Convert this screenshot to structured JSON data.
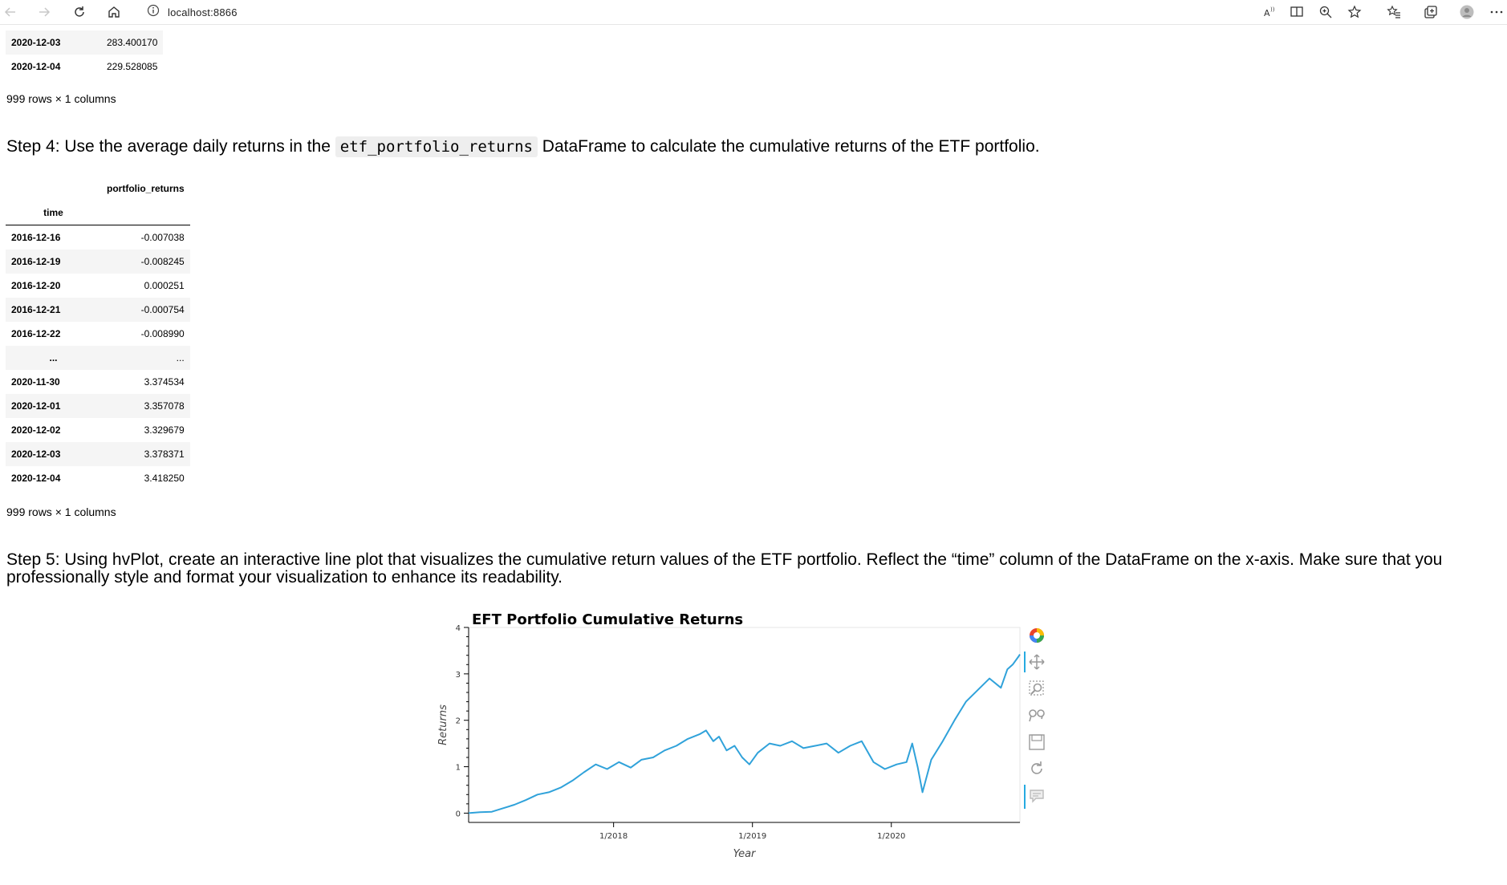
{
  "browser": {
    "url": "localhost:8866",
    "icons": [
      "back-icon",
      "forward-icon",
      "reload-icon",
      "home-icon",
      "info-icon",
      "read-aloud-icon",
      "immersive-reader-icon",
      "zoom-icon",
      "favorite-icon",
      "favorites-icon",
      "collections-icon",
      "profile-icon",
      "more-icon"
    ]
  },
  "top_table": {
    "rows": [
      {
        "index": "2020-12-03",
        "value": "283.400170"
      },
      {
        "index": "2020-12-04",
        "value": "229.528085"
      }
    ],
    "shape": "999 rows × 1 columns"
  },
  "step4": {
    "before": "Step 4: Use the average daily returns in the ",
    "code": "etf_portfolio_returns",
    "after": " DataFrame to calculate the cumulative returns of the ETF portfolio."
  },
  "returns_table": {
    "column": "portfolio_returns",
    "index_name": "time",
    "rows": [
      {
        "index": "2016-12-16",
        "value": "-0.007038"
      },
      {
        "index": "2016-12-19",
        "value": "-0.008245"
      },
      {
        "index": "2016-12-20",
        "value": "0.000251"
      },
      {
        "index": "2016-12-21",
        "value": "-0.000754"
      },
      {
        "index": "2016-12-22",
        "value": "-0.008990"
      },
      {
        "index": "...",
        "value": "..."
      },
      {
        "index": "2020-11-30",
        "value": "3.374534"
      },
      {
        "index": "2020-12-01",
        "value": "3.357078"
      },
      {
        "index": "2020-12-02",
        "value": "3.329679"
      },
      {
        "index": "2020-12-03",
        "value": "3.378371"
      },
      {
        "index": "2020-12-04",
        "value": "3.418250"
      }
    ],
    "shape": "999 rows × 1 columns"
  },
  "step5": {
    "text": "Step 5: Using hvPlot, create an interactive line plot that visualizes the cumulative return values of the ETF portfolio. Reflect the “time” column of the DataFrame on the x-axis. Make sure that you professionally style and format your visualization to enhance its readability."
  },
  "plot_tools": [
    "bokeh-logo-icon",
    "pan-icon",
    "box-zoom-icon",
    "wheel-zoom-icon",
    "save-icon",
    "reset-icon",
    "hover-icon"
  ],
  "chart_data": {
    "type": "line",
    "title": "EFT Portfolio Cumulative Returns",
    "xlabel": "Year",
    "ylabel": "Returns",
    "xlim": [
      "2016-12-16",
      "2020-12-04"
    ],
    "ylim": [
      -0.2,
      4
    ],
    "yticks": [
      0,
      1,
      2,
      3,
      4
    ],
    "xticks": [
      {
        "date": "2018-01-01",
        "label": "1/2018"
      },
      {
        "date": "2019-01-01",
        "label": "1/2019"
      },
      {
        "date": "2020-01-01",
        "label": "1/2020"
      }
    ],
    "color": "#30a2da",
    "grid": false,
    "series": [
      {
        "x": [
          "2016-12-16",
          "2017-01-15",
          "2017-02-15",
          "2017-03-15",
          "2017-04-15",
          "2017-05-15",
          "2017-06-15",
          "2017-07-15",
          "2017-08-15",
          "2017-09-15",
          "2017-10-15",
          "2017-11-15",
          "2017-12-15",
          "2018-01-15",
          "2018-02-15",
          "2018-03-15",
          "2018-04-15",
          "2018-05-15",
          "2018-06-15",
          "2018-07-15",
          "2018-08-15",
          "2018-09-01",
          "2018-09-20",
          "2018-10-05",
          "2018-10-25",
          "2018-11-15",
          "2018-12-05",
          "2018-12-24",
          "2019-01-15",
          "2019-02-15",
          "2019-03-15",
          "2019-04-15",
          "2019-05-15",
          "2019-06-15",
          "2019-07-15",
          "2019-08-15",
          "2019-09-15",
          "2019-10-15",
          "2019-11-15",
          "2019-12-15",
          "2020-01-15",
          "2020-02-10",
          "2020-02-25",
          "2020-03-10",
          "2020-03-23",
          "2020-04-15",
          "2020-05-15",
          "2020-06-15",
          "2020-07-15",
          "2020-08-15",
          "2020-09-15",
          "2020-10-15",
          "2020-11-01",
          "2020-11-15",
          "2020-11-30",
          "2020-12-04"
        ],
        "y": [
          0.0,
          0.02,
          0.03,
          0.1,
          0.18,
          0.28,
          0.4,
          0.45,
          0.55,
          0.7,
          0.88,
          1.05,
          0.95,
          1.1,
          0.98,
          1.15,
          1.2,
          1.35,
          1.45,
          1.6,
          1.7,
          1.78,
          1.55,
          1.65,
          1.35,
          1.45,
          1.2,
          1.05,
          1.3,
          1.5,
          1.45,
          1.55,
          1.4,
          1.45,
          1.5,
          1.3,
          1.45,
          1.55,
          1.1,
          0.95,
          1.05,
          1.1,
          1.5,
          1.0,
          0.45,
          1.15,
          1.55,
          2.0,
          2.4,
          2.65,
          2.9,
          2.7,
          3.1,
          3.2,
          3.37,
          3.42
        ]
      }
    ]
  }
}
